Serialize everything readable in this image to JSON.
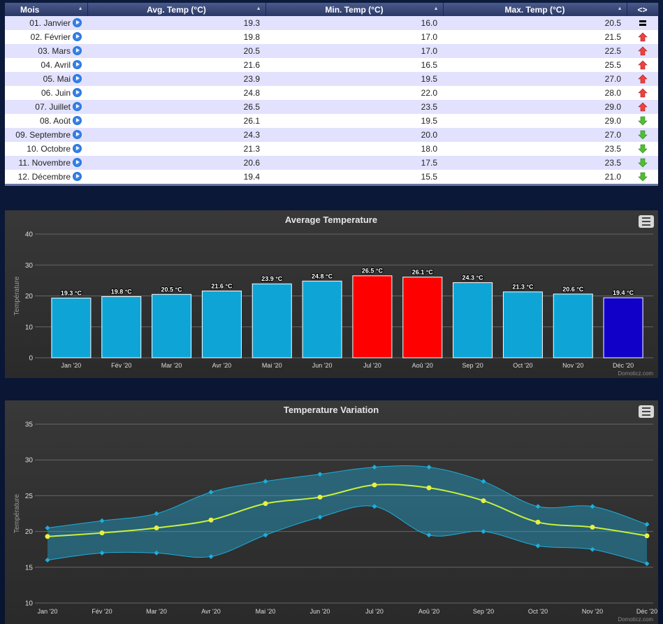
{
  "table": {
    "columns": [
      "Mois",
      "Avg. Temp (°C)",
      "Min. Temp (°C)",
      "Max. Temp (°C)",
      "<>"
    ],
    "rows": [
      [
        "01. Janvier",
        "19.3",
        "16.0",
        "20.5"
      ],
      [
        "02. Février",
        "19.8",
        "17.0",
        "21.5"
      ],
      [
        "03. Mars",
        "20.5",
        "17.0",
        "22.5"
      ],
      [
        "04. Avril",
        "21.6",
        "16.5",
        "25.5"
      ],
      [
        "05. Mai",
        "23.9",
        "19.5",
        "27.0"
      ],
      [
        "06. Juin",
        "24.8",
        "22.0",
        "28.0"
      ],
      [
        "07. Juillet",
        "26.5",
        "23.5",
        "29.0"
      ],
      [
        "08. Août",
        "26.1",
        "19.5",
        "29.0"
      ],
      [
        "09. Septembre",
        "24.3",
        "20.0",
        "27.0"
      ],
      [
        "10. Octobre",
        "21.3",
        "18.0",
        "23.5"
      ],
      [
        "11. Novembre",
        "20.6",
        "17.5",
        "23.5"
      ],
      [
        "12. Décembre",
        "19.4",
        "15.5",
        "21.0"
      ]
    ]
  },
  "chart_data": [
    {
      "type": "bar",
      "title": "Average Temperature",
      "y_label": "Température",
      "credits": "Domoticz.com",
      "categories": [
        "Jan '20",
        "Fév '20",
        "Mar '20",
        "Avr '20",
        "Mai '20",
        "Jun '20",
        "Jul '20",
        "Aoû '20",
        "Sep '20",
        "Oct '20",
        "Nov '20",
        "Déc '20"
      ],
      "values": [
        19.3,
        19.8,
        20.5,
        21.6,
        23.9,
        24.8,
        26.5,
        26.1,
        24.3,
        21.3,
        20.6,
        19.4
      ],
      "value_labels": [
        "19.3 °C",
        "19.8 °C",
        "20.5 °C",
        "21.6 °C",
        "23.9 °C",
        "24.8 °C",
        "26.5 °C",
        "26.1 °C",
        "24.3 °C",
        "21.3 °C",
        "20.6 °C",
        "19.4 °C"
      ],
      "colors": [
        "#0ea5d6",
        "#0ea5d6",
        "#0ea5d6",
        "#0ea5d6",
        "#0ea5d6",
        "#0ea5d6",
        "#ff0000",
        "#ff0000",
        "#0ea5d6",
        "#0ea5d6",
        "#0ea5d6",
        "#1000c8"
      ],
      "ylim": [
        0,
        40
      ],
      "yticks": [
        0,
        10,
        20,
        30,
        40
      ],
      "grid": true
    },
    {
      "type": "arearange",
      "title": "Temperature Variation",
      "y_label": "Température",
      "credits": "Domoticz.com",
      "categories": [
        "Jan '20",
        "Fév '20",
        "Mar '20",
        "Avr '20",
        "Mai '20",
        "Jun '20",
        "Jul '20",
        "Aoû '20",
        "Sep '20",
        "Oct '20",
        "Nov '20",
        "Déc '20"
      ],
      "series": [
        {
          "color": "#1eaedb",
          "low": [
            16.0,
            17.0,
            17.0,
            16.5,
            19.5,
            22.0,
            23.5,
            19.5,
            20.0,
            18.0,
            17.5,
            15.5
          ],
          "high": [
            20.5,
            21.5,
            22.5,
            25.5,
            27.0,
            28.0,
            29.0,
            29.0,
            27.0,
            23.5,
            23.5,
            21.0
          ]
        },
        {
          "color": "#c8f03c",
          "values": [
            19.3,
            19.8,
            20.5,
            21.6,
            23.9,
            24.8,
            26.5,
            26.1,
            24.3,
            21.3,
            20.6,
            19.4
          ]
        }
      ],
      "ylim": [
        10,
        35
      ],
      "yticks": [
        10,
        15,
        20,
        25,
        30,
        35
      ],
      "grid": true
    }
  ]
}
